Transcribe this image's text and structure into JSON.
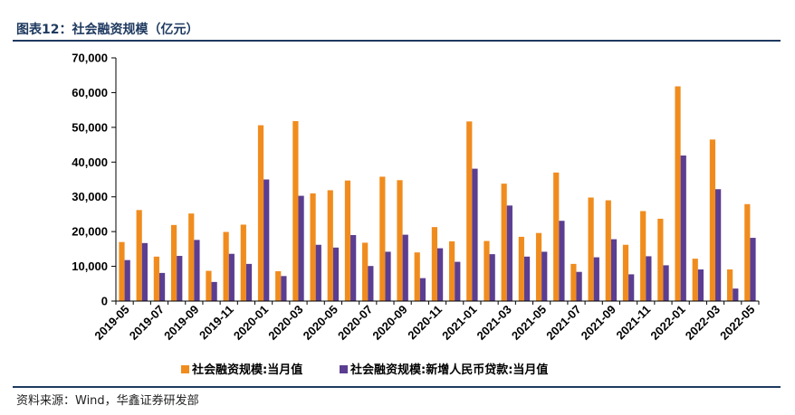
{
  "header": {
    "title": "图表12：社会融资规模（亿元）"
  },
  "footer": {
    "source": "资料来源：Wind，华鑫证券研发部"
  },
  "colors": {
    "series1": "#F08C1E",
    "series2": "#5B3E91",
    "rule": "#1F3A60"
  },
  "chart_data": {
    "type": "bar",
    "title": "",
    "xlabel": "",
    "ylabel": "",
    "ylim": [
      0,
      70000
    ],
    "yticks": [
      0,
      10000,
      20000,
      30000,
      40000,
      50000,
      60000,
      70000
    ],
    "ytick_labels": [
      "0",
      "10,000",
      "20,000",
      "30,000",
      "40,000",
      "50,000",
      "60,000",
      "70,000"
    ],
    "grid": false,
    "legend_position": "bottom",
    "categories": [
      "2019-05",
      "2019-06",
      "2019-07",
      "2019-08",
      "2019-09",
      "2019-10",
      "2019-11",
      "2019-12",
      "2020-01",
      "2020-02",
      "2020-03",
      "2020-04",
      "2020-05",
      "2020-06",
      "2020-07",
      "2020-08",
      "2020-09",
      "2020-10",
      "2020-11",
      "2020-12",
      "2021-01",
      "2021-02",
      "2021-03",
      "2021-04",
      "2021-05",
      "2021-06",
      "2021-07",
      "2021-08",
      "2021-09",
      "2021-10",
      "2021-11",
      "2021-12",
      "2022-01",
      "2022-02",
      "2022-03",
      "2022-04",
      "2022-05"
    ],
    "tick_labels_shown": [
      "2019-05",
      "2019-07",
      "2019-09",
      "2019-11",
      "2020-01",
      "2020-03",
      "2020-05",
      "2020-07",
      "2020-09",
      "2020-11",
      "2021-01",
      "2021-03",
      "2021-05",
      "2021-07",
      "2021-09",
      "2021-11",
      "2022-01",
      "2022-03",
      "2022-05"
    ],
    "series": [
      {
        "name": "社会融资规模:当月值",
        "values": [
          17000,
          26200,
          12800,
          21900,
          25200,
          8700,
          19900,
          22000,
          50600,
          8600,
          51800,
          31000,
          31900,
          34700,
          16800,
          35800,
          34800,
          14000,
          21300,
          17200,
          51700,
          17300,
          33800,
          18500,
          19600,
          37000,
          10700,
          29800,
          29000,
          16200,
          25900,
          23700,
          61800,
          12200,
          46500,
          9100,
          27900
        ]
      },
      {
        "name": "社会融资规模:新增人民币贷款:当月值",
        "values": [
          11800,
          16700,
          8100,
          13000,
          17600,
          5500,
          13600,
          10700,
          35000,
          7200,
          30300,
          16200,
          15400,
          19000,
          10100,
          14200,
          19100,
          6600,
          15200,
          11300,
          38100,
          13500,
          27500,
          12800,
          14200,
          23100,
          8400,
          12600,
          17800,
          7700,
          12900,
          10300,
          41900,
          9100,
          32200,
          3600,
          18200
        ]
      }
    ]
  }
}
